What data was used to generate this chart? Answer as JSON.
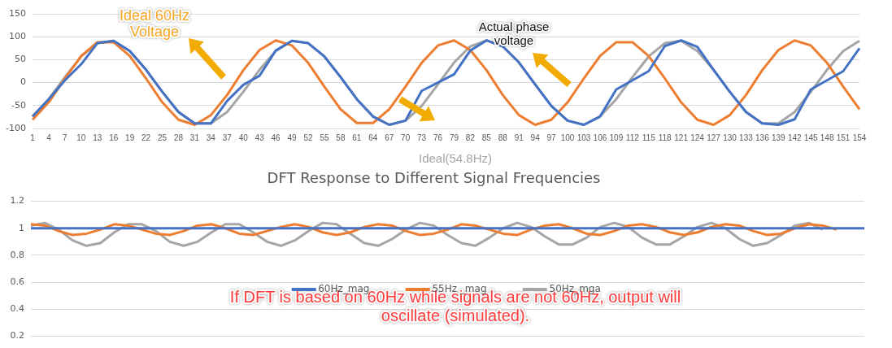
{
  "chart_data": [
    {
      "type": "line",
      "categories": [
        "1",
        "4",
        "7",
        "10",
        "13",
        "16",
        "19",
        "22",
        "25",
        "28",
        "31",
        "34",
        "37",
        "40",
        "43",
        "46",
        "49",
        "52",
        "55",
        "58",
        "61",
        "64",
        "67",
        "70",
        "73",
        "76",
        "79",
        "82",
        "85",
        "88",
        "91",
        "94",
        "97",
        "100",
        "103",
        "106",
        "109",
        "112",
        "115",
        "118",
        "121",
        "124",
        "127",
        "130",
        "133",
        "136",
        "139",
        "142",
        "145",
        "148",
        "151",
        "154"
      ],
      "series": [
        {
          "color": "#4472c4",
          "values": [
            -74,
            -36,
            5,
            40,
            86,
            91,
            69,
            28,
            -20,
            -64,
            -89,
            -89,
            -40,
            -5,
            15,
            70,
            91,
            86,
            57,
            12,
            -36,
            -74,
            -92,
            -83,
            -18,
            0,
            18,
            70,
            92,
            79,
            44,
            -4,
            -51,
            -83,
            -92,
            -74,
            -15,
            5,
            25,
            80,
            92,
            78,
            28,
            -20,
            -64,
            -89,
            -92,
            -80,
            -15,
            5,
            25,
            75
          ]
        },
        {
          "color": "#ed7d31",
          "values": [
            -81,
            -43,
            9,
            58,
            88,
            88,
            58,
            9,
            -43,
            -81,
            -92,
            -71,
            -27,
            27,
            71,
            92,
            81,
            43,
            -9,
            -58,
            -88,
            -88,
            -58,
            -9,
            43,
            81,
            92,
            71,
            27,
            -27,
            -71,
            -92,
            -81,
            -43,
            9,
            58,
            88,
            88,
            58,
            9,
            -43,
            -81,
            -92,
            -71,
            -27,
            27,
            71,
            92,
            81,
            43,
            -9,
            -58
          ]
        },
        {
          "color": "#a5a5a5",
          "values": [
            -74,
            -36,
            12,
            57,
            86,
            91,
            69,
            28,
            -20,
            -64,
            -89,
            -89,
            -64,
            -20,
            28,
            69,
            91,
            86,
            57,
            12,
            -36,
            -74,
            -92,
            -83,
            -51,
            -4,
            44,
            79,
            92,
            79,
            44,
            -4,
            -51,
            -83,
            -92,
            -74,
            -36,
            12,
            57,
            86,
            91,
            69,
            28,
            -20,
            -64,
            -89,
            -89,
            -64,
            -20,
            28,
            69,
            91
          ]
        }
      ],
      "ylim": [
        -100,
        150
      ],
      "yticks": [
        -100,
        -50,
        0,
        50,
        100,
        150
      ],
      "grid": "y",
      "annotations": [
        "Ideal 60Hz\nVoltage",
        "Actual phase\nvoltage",
        "Ideal(54.8Hz)"
      ]
    },
    {
      "type": "line",
      "title": "DFT Response to Different Signal Frequencies",
      "categories": [
        null,
        null,
        null,
        null,
        null,
        null,
        null,
        null,
        null,
        null,
        null,
        null,
        null,
        null,
        null,
        null,
        null,
        null,
        null,
        null,
        null,
        null,
        null,
        null,
        null,
        null,
        null,
        null,
        null,
        null,
        null,
        null,
        null,
        null,
        null,
        null,
        null,
        null,
        null,
        null,
        null,
        null,
        null,
        null,
        null,
        null,
        null,
        null,
        null,
        null,
        null,
        null,
        null,
        null,
        null,
        null,
        null,
        null,
        null,
        null,
        null
      ],
      "series": [
        {
          "name": "60Hz_mag",
          "color": "#4472c4",
          "values": [
            1,
            1,
            1,
            1,
            1,
            1,
            1,
            1,
            1,
            1,
            1,
            1,
            1,
            1,
            1,
            1,
            1,
            1,
            1,
            1,
            1,
            1,
            1,
            1,
            1,
            1,
            1,
            1,
            1,
            1,
            1,
            1,
            1,
            1,
            1,
            1,
            1,
            1,
            1,
            1,
            1,
            1,
            1,
            1,
            1,
            1,
            1,
            1,
            1,
            1,
            1,
            1,
            1,
            1,
            1,
            1,
            1,
            1,
            1,
            1,
            1
          ]
        },
        {
          "name": "55Hz _mag",
          "color": "#ed7d31",
          "values": [
            1.03,
            1.02,
            0.98,
            0.95,
            0.96,
            0.99,
            1.03,
            1.02,
            0.99,
            0.96,
            0.95,
            0.98,
            1.02,
            1.03,
            1.0,
            0.96,
            0.95,
            0.98,
            1.01,
            1.03,
            1.01,
            0.97,
            0.95,
            0.97,
            1.01,
            1.03,
            1.02,
            0.98,
            0.95,
            0.96,
            0.99,
            1.03,
            1.02,
            0.99,
            0.96,
            0.95,
            0.99,
            1.02,
            1.03,
            1.0,
            0.96,
            0.95,
            0.98,
            1.02,
            1.03,
            1.01,
            0.97,
            0.95,
            0.97,
            1.01,
            1.03,
            1.02,
            0.98,
            0.95,
            0.96,
            1.0,
            1.03,
            1.02,
            0.99,
            null,
            null
          ]
        },
        {
          "name": "50Hz_mga",
          "color": "#a5a5a5",
          "values": [
            1.02,
            1.04,
            0.99,
            0.91,
            0.87,
            0.89,
            0.97,
            1.03,
            1.03,
            0.98,
            0.9,
            0.87,
            0.9,
            0.97,
            1.03,
            1.03,
            0.97,
            0.9,
            0.87,
            0.91,
            0.98,
            1.04,
            1.03,
            0.96,
            0.89,
            0.87,
            0.92,
            0.99,
            1.04,
            1.02,
            0.95,
            0.89,
            0.87,
            0.93,
            1.0,
            1.04,
            1.01,
            0.94,
            0.88,
            0.88,
            0.93,
            1.01,
            1.04,
            1.01,
            0.93,
            0.88,
            0.88,
            0.94,
            1.01,
            1.04,
            1.0,
            0.92,
            0.87,
            0.89,
            0.95,
            1.02,
            1.04,
            0.99,
            null,
            null,
            null
          ]
        }
      ],
      "ylim": [
        0.2,
        1.2
      ],
      "yticks": [
        0.2,
        0.4,
        0.6,
        0.8,
        1,
        1.2
      ],
      "grid": "y",
      "legend": "bottom",
      "tick_labels": "y",
      "annotations": [
        "If DFT is based on 60Hz while signals are not 60Hz, output will oscillate (simulated)."
      ]
    }
  ]
}
